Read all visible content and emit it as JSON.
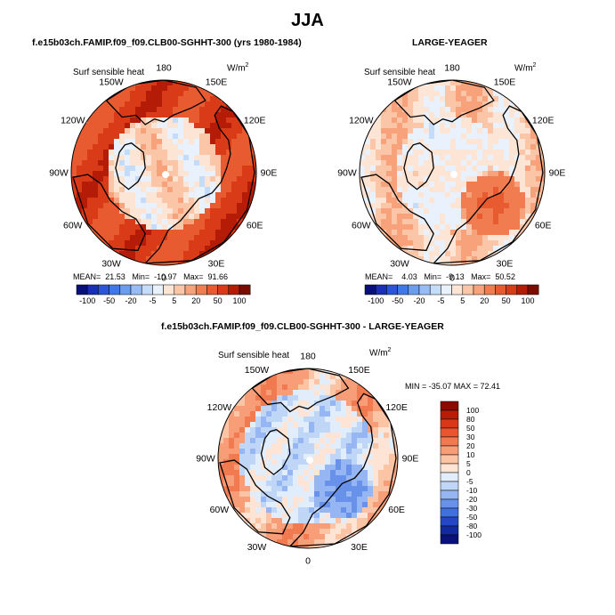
{
  "figure": {
    "title": "JJA",
    "colors": {
      "background": "#ffffff",
      "land_outline": "#000000"
    }
  },
  "panels": [
    {
      "id": "top-left",
      "header": "f.e15b03ch.FAMIP.f09_f09.CLB00-SGHHT-300 (yrs 1980-1984)",
      "title": "Surf sensible heat",
      "units": "W/m",
      "units_sup": "2",
      "stats": {
        "mean_label": "MEAN=",
        "mean": "21.53",
        "min_label": "Min=",
        "min": "-10.97",
        "max_label": "Max=",
        "max": "91.66"
      }
    },
    {
      "id": "top-right",
      "header": "LARGE-YEAGER",
      "title": "Surf sensible heat",
      "units": "W/m",
      "units_sup": "2",
      "stats": {
        "mean_label": "MEAN=",
        "mean": "4.03",
        "min_label": "Min=",
        "min": "-9.13",
        "max_label": "Max=",
        "max": "50.52"
      }
    },
    {
      "id": "bottom",
      "header": "f.e15b03ch.FAMIP.f09_f09.CLB00-SGHHT-300 - LARGE-YEAGER",
      "title": "Surf sensible heat",
      "units": "W/m",
      "units_sup": "2",
      "stats_text": "MIN = -35.07 MAX =  72.41"
    }
  ],
  "map_labels": [
    "180",
    "150E",
    "120E",
    "90E",
    "60E",
    "30E",
    "0",
    "30W",
    "60W",
    "90W",
    "120W",
    "150W"
  ],
  "chart_data": [
    {
      "type": "heatmap",
      "projection": "north-polar-stereographic",
      "title": "Surf sensible heat",
      "units": "W/m2",
      "mean": 21.53,
      "min": -10.97,
      "max": 91.66,
      "colorbar": {
        "ticks": [
          "-100",
          "-50",
          "-20",
          "-5",
          "5",
          "20",
          "50",
          "100"
        ],
        "levels": [
          -100,
          -80,
          -50,
          -30,
          -20,
          -10,
          -5,
          0,
          5,
          10,
          20,
          30,
          50,
          80,
          100
        ],
        "colors": [
          "#08107a",
          "#1a2fb8",
          "#2a55d8",
          "#3f78e8",
          "#6a9cf0",
          "#98bcf5",
          "#c5dcf9",
          "#e8f1fc",
          "#fde5d5",
          "#fbc5a8",
          "#f7a27a",
          "#f07c50",
          "#e85a30",
          "#d93a18",
          "#b41c08",
          "#7c0c02"
        ],
        "orientation": "horizontal"
      }
    },
    {
      "type": "heatmap",
      "projection": "north-polar-stereographic",
      "title": "Surf sensible heat",
      "units": "W/m2",
      "mean": 4.03,
      "min": -9.13,
      "max": 50.52,
      "colorbar": {
        "ticks": [
          "-100",
          "-50",
          "-20",
          "-5",
          "5",
          "20",
          "50",
          "100"
        ],
        "levels": [
          -100,
          -80,
          -50,
          -30,
          -20,
          -10,
          -5,
          0,
          5,
          10,
          20,
          30,
          50,
          80,
          100
        ],
        "colors": [
          "#08107a",
          "#1a2fb8",
          "#2a55d8",
          "#3f78e8",
          "#6a9cf0",
          "#98bcf5",
          "#c5dcf9",
          "#e8f1fc",
          "#fde5d5",
          "#fbc5a8",
          "#f7a27a",
          "#f07c50",
          "#e85a30",
          "#d93a18",
          "#b41c08",
          "#7c0c02"
        ],
        "orientation": "horizontal"
      }
    },
    {
      "type": "heatmap",
      "projection": "north-polar-stereographic",
      "title": "Surf sensible heat",
      "units": "W/m2",
      "min": -35.07,
      "max": 72.41,
      "colorbar": {
        "ticks": [
          "100",
          "80",
          "50",
          "30",
          "20",
          "10",
          "5",
          "0",
          "-5",
          "-10",
          "-20",
          "-30",
          "-50",
          "-80",
          "-100"
        ],
        "colors": [
          "#8a0a04",
          "#b81c08",
          "#d83818",
          "#ea5530",
          "#f27a50",
          "#f79e78",
          "#fbc4a4",
          "#fde4d4",
          "#e2edfb",
          "#c0d6f7",
          "#95b6f2",
          "#6892ea",
          "#3f6fe0",
          "#2448c4",
          "#112aa0",
          "#0a127a"
        ],
        "orientation": "vertical"
      }
    }
  ]
}
